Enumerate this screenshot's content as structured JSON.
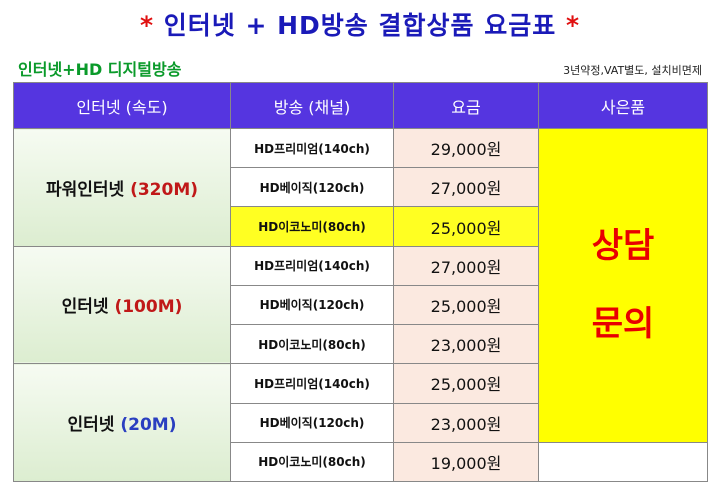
{
  "title": {
    "star_left": "*",
    "text": "인터넷 + HD방송 결합상품 요금표",
    "star_right": "*"
  },
  "subtitle": "인터넷+HD 디지털방송",
  "note": "3년약정,VAT별도, 설치비면제",
  "headers": [
    "인터넷 (속도)",
    "방송 (채널)",
    "요금",
    "사은품"
  ],
  "groups": [
    {
      "name": "파워인터넷",
      "speed": "(320M)",
      "rows": [
        {
          "channel": "HD프리미엄(140ch)",
          "price": "29,000원"
        },
        {
          "channel": "HD베이직(120ch)",
          "price": "27,000원"
        },
        {
          "channel": "HD이코노미(80ch)",
          "price": "25,000원"
        }
      ]
    },
    {
      "name": "인터넷",
      "speed": "(100M)",
      "rows": [
        {
          "channel": "HD프리미엄(140ch)",
          "price": "27,000원"
        },
        {
          "channel": "HD베이직(120ch)",
          "price": "25,000원"
        },
        {
          "channel": "HD이코노미(80ch)",
          "price": "23,000원"
        }
      ]
    },
    {
      "name": "인터넷",
      "speed": "(20M)",
      "rows": [
        {
          "channel": "HD프리미엄(140ch)",
          "price": "25,000원"
        },
        {
          "channel": "HD베이직(120ch)",
          "price": "23,000원"
        },
        {
          "channel": "HD이코노미(80ch)",
          "price": "19,000원"
        }
      ]
    }
  ],
  "gift": {
    "line1": "상담",
    "line2": "문의"
  },
  "colors": {
    "title_blue": "#1a1ab8",
    "title_star_red": "#e01010",
    "subtitle_green": "#0a9a2a",
    "header_purple": "#5535e0",
    "highlight_yellow": "#ffff22",
    "gift_red": "#e80000"
  }
}
